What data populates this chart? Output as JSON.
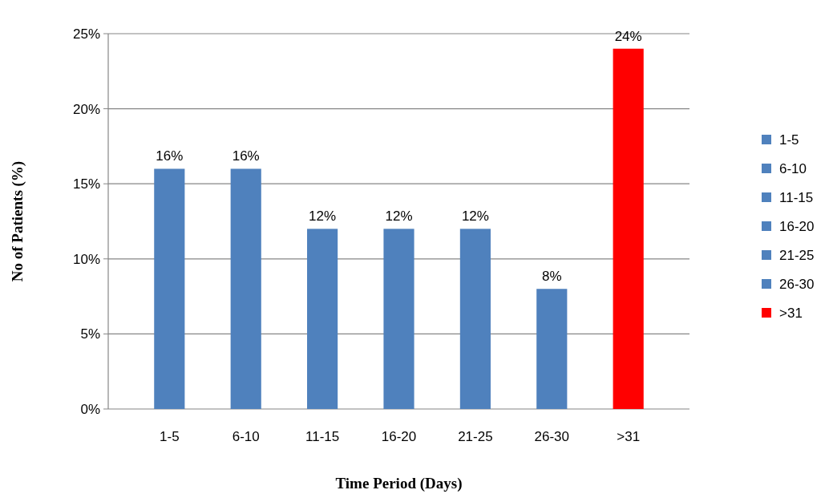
{
  "chart_data": {
    "type": "bar",
    "xlabel": "Time Period (Days)",
    "ylabel": "No of Patients (%)",
    "categories": [
      "1-5",
      "6-10",
      "11-15",
      "16-20",
      "21-25",
      "26-30",
      ">31"
    ],
    "series": [
      {
        "name": "1-5",
        "color": "#4f81bd",
        "values": [
          16,
          null,
          null,
          null,
          null,
          null,
          null
        ],
        "value_labels": [
          "16%",
          null,
          null,
          null,
          null,
          null,
          null
        ]
      },
      {
        "name": "6-10",
        "color": "#4f81bd",
        "values": [
          null,
          16,
          null,
          null,
          null,
          null,
          null
        ],
        "value_labels": [
          null,
          "16%",
          null,
          null,
          null,
          null,
          null
        ]
      },
      {
        "name": "11-15",
        "color": "#4f81bd",
        "values": [
          null,
          null,
          12,
          null,
          null,
          null,
          null
        ],
        "value_labels": [
          null,
          null,
          "12%",
          null,
          null,
          null,
          null
        ]
      },
      {
        "name": "16-20",
        "color": "#4f81bd",
        "values": [
          null,
          null,
          null,
          12,
          null,
          null,
          null
        ],
        "value_labels": [
          null,
          null,
          null,
          "12%",
          null,
          null,
          null
        ]
      },
      {
        "name": "21-25",
        "color": "#4f81bd",
        "values": [
          null,
          null,
          null,
          null,
          12,
          null,
          null
        ],
        "value_labels": [
          null,
          null,
          null,
          null,
          "12%",
          null,
          null
        ]
      },
      {
        "name": "26-30",
        "color": "#4f81bd",
        "values": [
          null,
          null,
          null,
          null,
          null,
          8,
          null
        ],
        "value_labels": [
          null,
          null,
          null,
          null,
          null,
          "8%",
          null
        ]
      },
      {
        "name": ">31",
        "color": "#ff0000",
        "values": [
          null,
          null,
          null,
          null,
          null,
          null,
          24
        ],
        "value_labels": [
          null,
          null,
          null,
          null,
          null,
          null,
          "24%"
        ]
      }
    ],
    "ylim": [
      0,
      25
    ],
    "yticks": [
      {
        "value": 0,
        "label": "0%"
      },
      {
        "value": 5,
        "label": "5%"
      },
      {
        "value": 10,
        "label": "10%"
      },
      {
        "value": 15,
        "label": "15%"
      },
      {
        "value": 20,
        "label": "20%"
      },
      {
        "value": 25,
        "label": "25%"
      }
    ],
    "grid": "y",
    "legend": "right"
  }
}
